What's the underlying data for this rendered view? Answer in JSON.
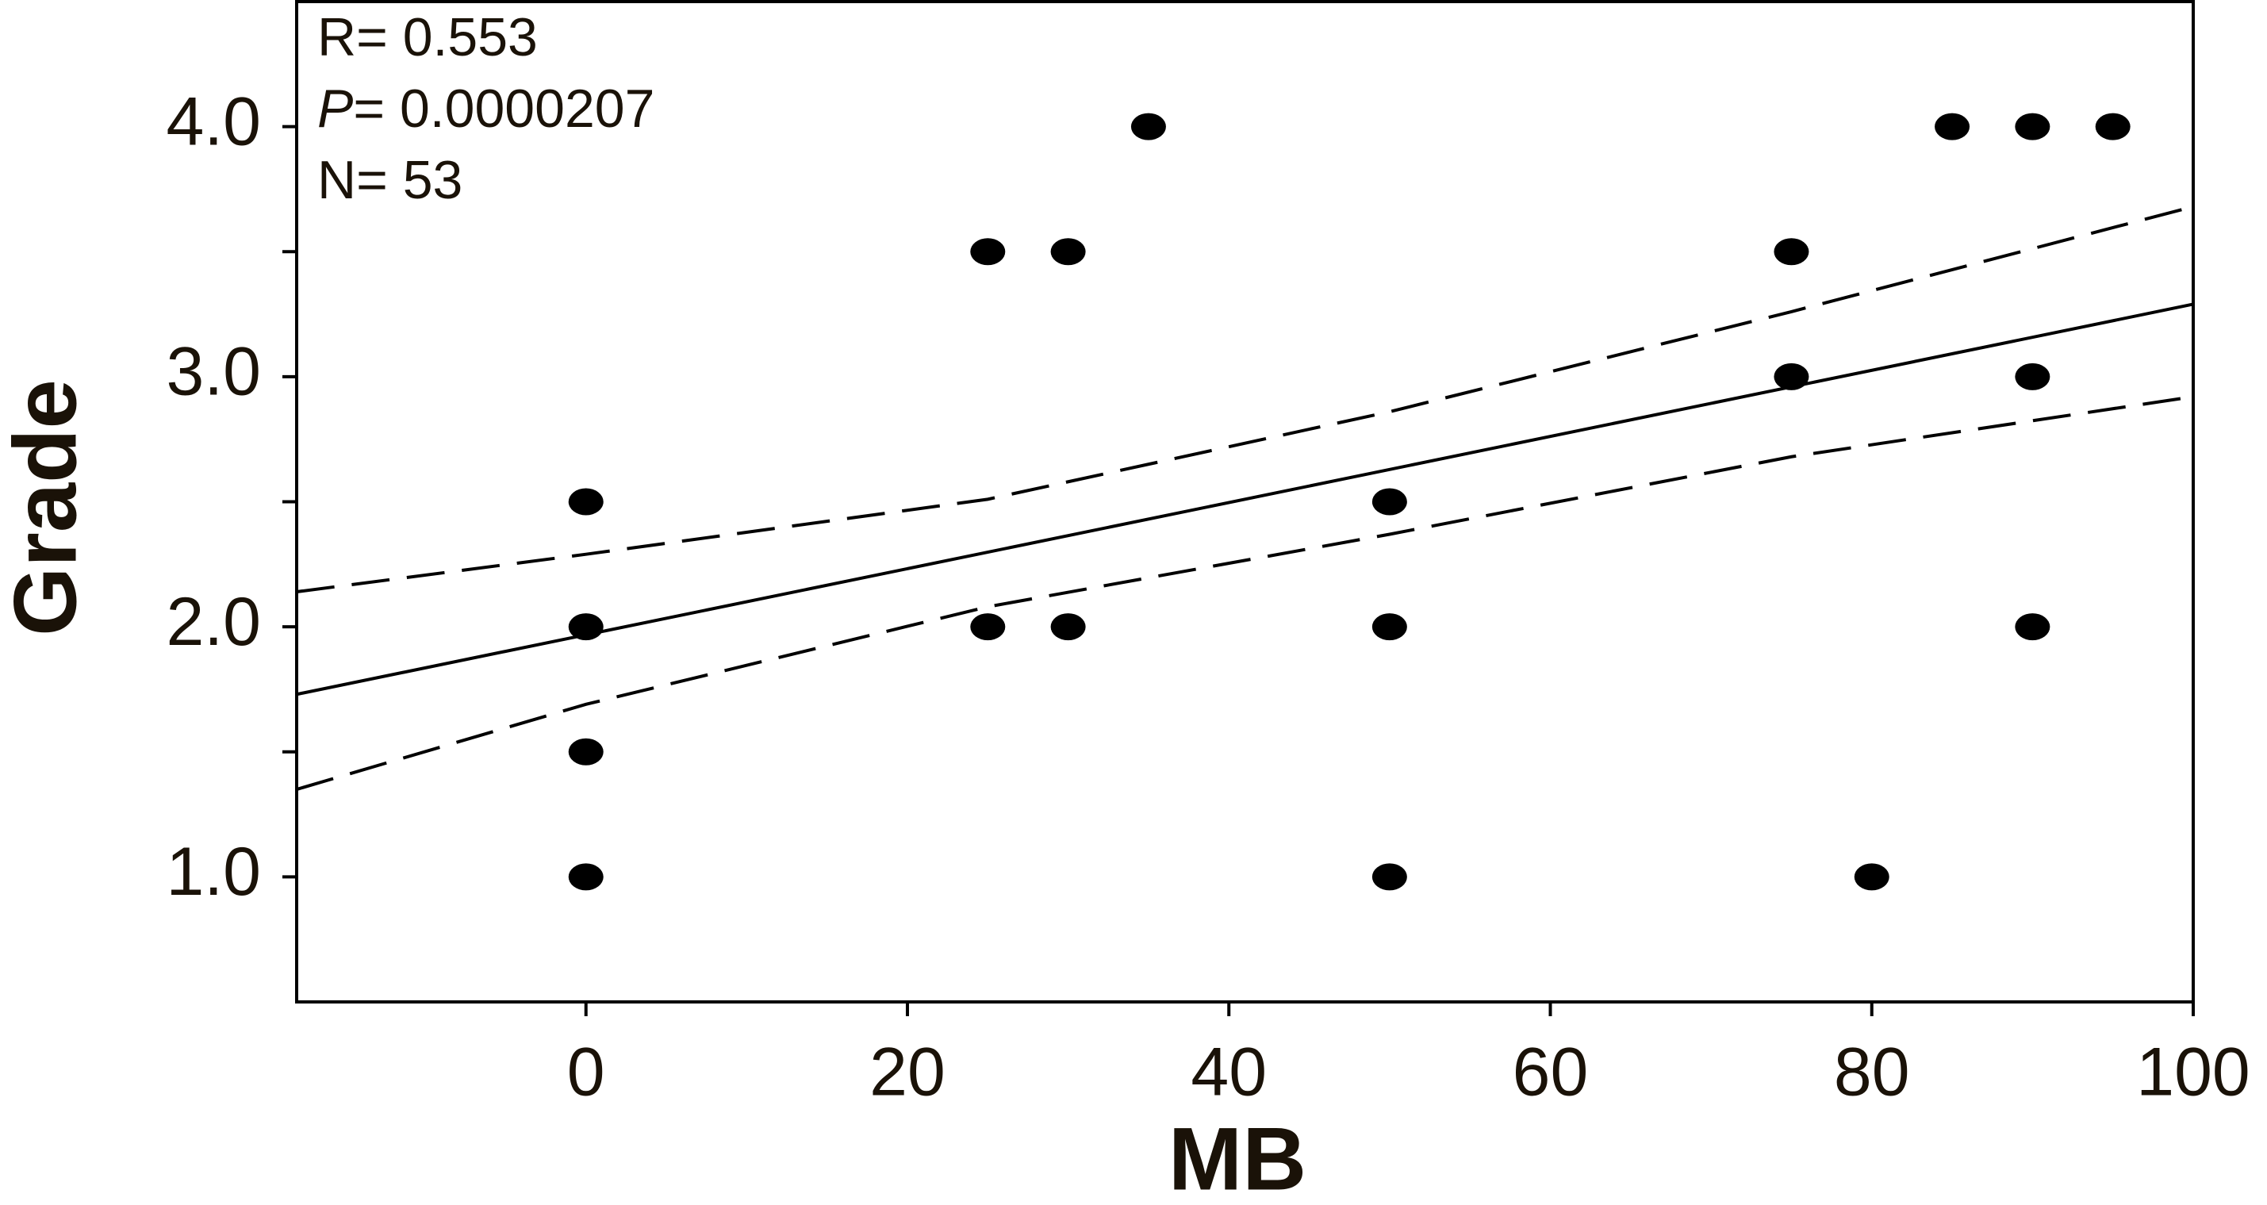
{
  "chart_data": {
    "type": "scatter",
    "x_label": "MB",
    "y_label": "Grade",
    "annotations": [
      "R= 0.553",
      [
        "P",
        "= 0.0000207"
      ],
      "N= 53"
    ],
    "xlim": [
      -18,
      100
    ],
    "xticks": [
      0,
      20,
      40,
      60,
      80,
      100
    ],
    "ylim": [
      0.5,
      4.5
    ],
    "yticks": [
      {
        "value": 1,
        "label": "1.0"
      },
      {
        "value": 2,
        "label": "2.0"
      },
      {
        "value": 3,
        "label": "3.0"
      },
      {
        "value": 4,
        "label": "4.0"
      }
    ],
    "yticks_minor": [
      1.5,
      2.5,
      3.5
    ],
    "color": "#000000",
    "x": [
      0,
      0,
      0,
      0,
      25,
      30,
      35,
      25,
      30,
      50,
      50,
      50,
      75,
      75,
      80,
      85,
      90,
      95,
      90,
      90
    ],
    "values": [
      2.5,
      2,
      1.5,
      1,
      3.5,
      3.5,
      4,
      2,
      2,
      2.5,
      2,
      1,
      3.5,
      3,
      1,
      4,
      4,
      4,
      3,
      2
    ],
    "lines": [
      {
        "style": "solid",
        "x": [
          -18,
          100
        ],
        "values": [
          1.73,
          3.29
        ]
      },
      {
        "style": "dashed",
        "x": [
          -18,
          0,
          25,
          50,
          75,
          100
        ],
        "values": [
          2.14,
          2.29,
          2.51,
          2.86,
          3.26,
          3.68
        ]
      },
      {
        "style": "dashed",
        "x": [
          -18,
          0,
          25,
          50,
          75,
          100
        ],
        "values": [
          1.35,
          1.69,
          2.08,
          2.37,
          2.68,
          2.92
        ]
      }
    ]
  }
}
